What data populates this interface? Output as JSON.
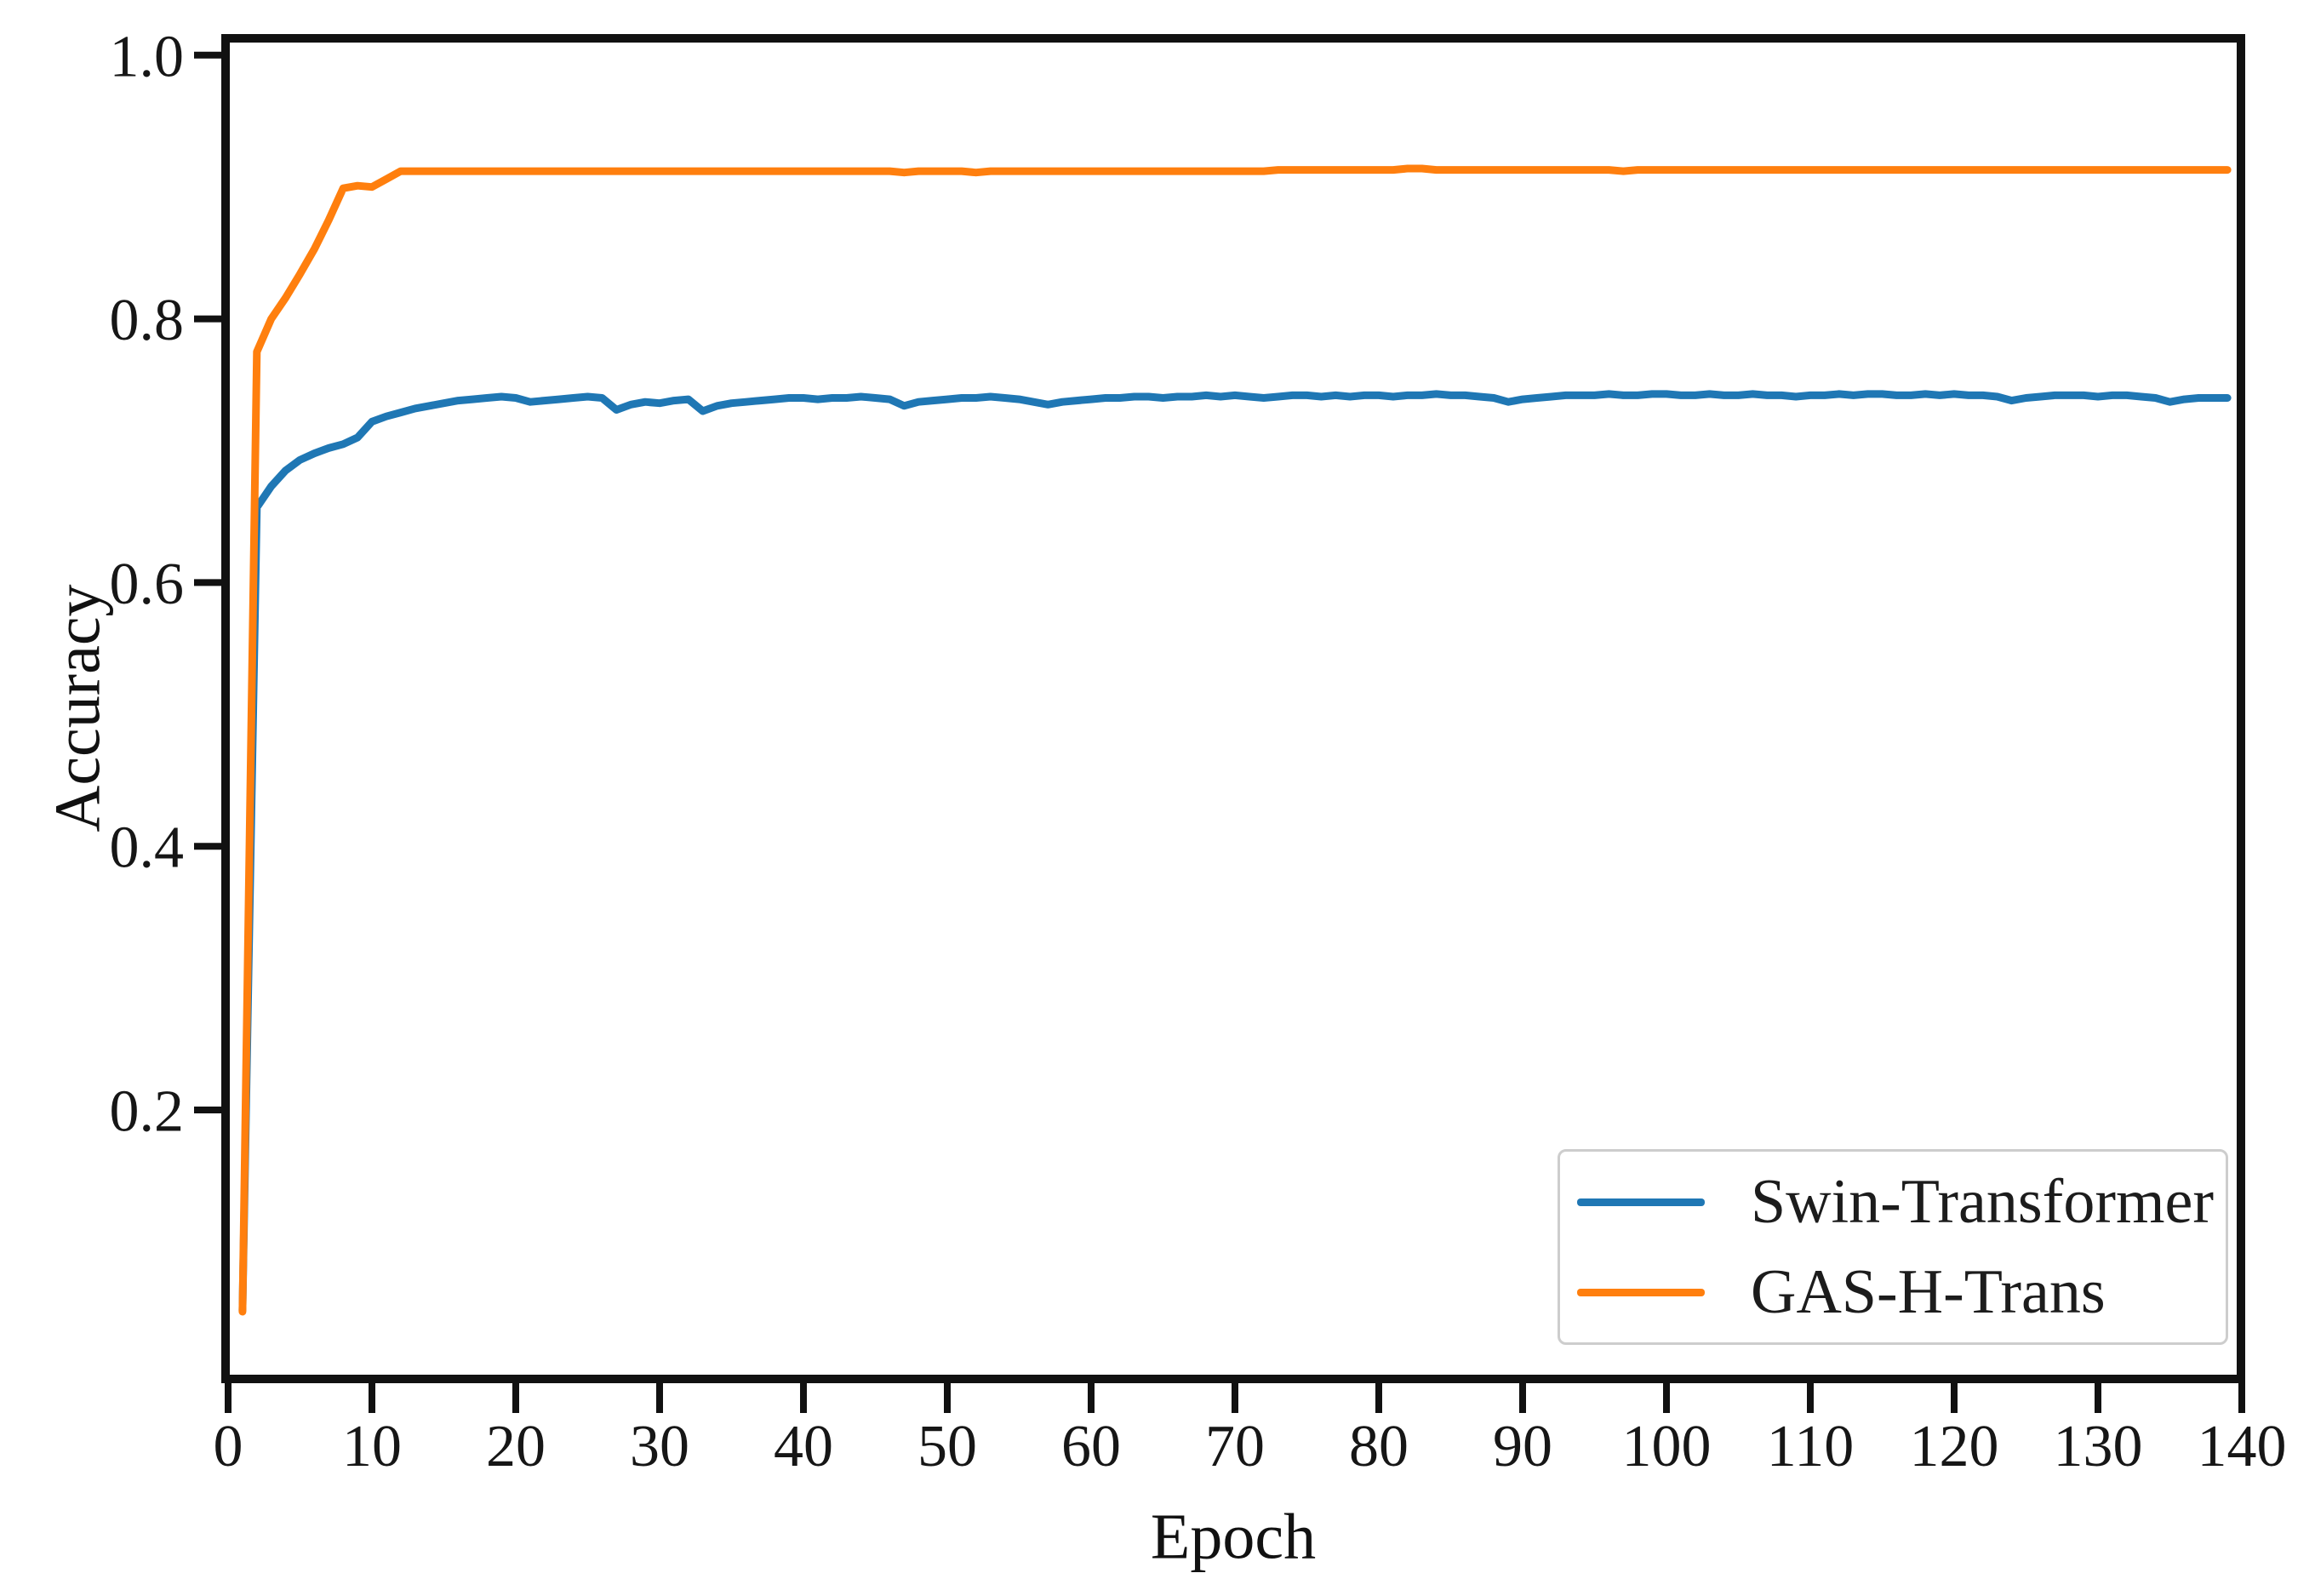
{
  "chart_data": {
    "type": "line",
    "title": "",
    "xlabel": "Epoch",
    "ylabel": "Accuracy",
    "xlim": [
      0,
      140
    ],
    "ylim": [
      0,
      1.01
    ],
    "grid": false,
    "legend_position": "lower right",
    "x_ticks": [
      0,
      10,
      20,
      30,
      40,
      50,
      60,
      70,
      80,
      90,
      100,
      110,
      120,
      130,
      140
    ],
    "x_tick_labels": [
      "0",
      "10",
      "20",
      "30",
      "40",
      "50",
      "60",
      "70",
      "80",
      "90",
      "100",
      "110",
      "120",
      "130",
      "140"
    ],
    "y_ticks": [
      0.2,
      0.4,
      0.6,
      0.8,
      1.0
    ],
    "y_tick_labels": [
      "0.2",
      "0.4",
      "0.6",
      "0.8",
      "1.0"
    ],
    "x_start": 1,
    "x_step": 1,
    "series": [
      {
        "name": "Swin-Transformer",
        "color": "#1f77b4",
        "values": [
          0.048,
          0.657,
          0.673,
          0.685,
          0.693,
          0.698,
          0.702,
          0.705,
          0.71,
          0.722,
          0.726,
          0.729,
          0.732,
          0.734,
          0.736,
          0.738,
          0.739,
          0.74,
          0.741,
          0.74,
          0.737,
          0.738,
          0.739,
          0.74,
          0.741,
          0.74,
          0.731,
          0.735,
          0.737,
          0.736,
          0.738,
          0.739,
          0.73,
          0.734,
          0.736,
          0.737,
          0.738,
          0.739,
          0.74,
          0.74,
          0.739,
          0.74,
          0.74,
          0.741,
          0.74,
          0.739,
          0.734,
          0.737,
          0.738,
          0.739,
          0.74,
          0.74,
          0.741,
          0.74,
          0.739,
          0.737,
          0.735,
          0.737,
          0.738,
          0.739,
          0.74,
          0.74,
          0.741,
          0.741,
          0.74,
          0.741,
          0.741,
          0.742,
          0.741,
          0.742,
          0.741,
          0.74,
          0.741,
          0.742,
          0.742,
          0.741,
          0.742,
          0.741,
          0.742,
          0.742,
          0.741,
          0.742,
          0.742,
          0.743,
          0.742,
          0.742,
          0.741,
          0.74,
          0.737,
          0.739,
          0.74,
          0.741,
          0.742,
          0.742,
          0.742,
          0.743,
          0.742,
          0.742,
          0.743,
          0.743,
          0.742,
          0.742,
          0.743,
          0.742,
          0.742,
          0.743,
          0.742,
          0.742,
          0.741,
          0.742,
          0.742,
          0.743,
          0.742,
          0.743,
          0.743,
          0.742,
          0.742,
          0.743,
          0.742,
          0.743,
          0.742,
          0.742,
          0.741,
          0.738,
          0.74,
          0.741,
          0.742,
          0.742,
          0.742,
          0.741,
          0.742,
          0.742,
          0.741,
          0.74,
          0.737,
          0.739,
          0.74,
          0.74,
          0.74
        ]
      },
      {
        "name": "GAS-H-Trans",
        "color": "#ff7f0e",
        "values": [
          0.047,
          0.775,
          0.8,
          0.816,
          0.834,
          0.853,
          0.875,
          0.899,
          0.901,
          0.9,
          0.906,
          0.912,
          0.912,
          0.912,
          0.912,
          0.912,
          0.912,
          0.912,
          0.912,
          0.912,
          0.912,
          0.912,
          0.912,
          0.912,
          0.912,
          0.912,
          0.912,
          0.912,
          0.912,
          0.912,
          0.912,
          0.912,
          0.912,
          0.912,
          0.912,
          0.912,
          0.912,
          0.912,
          0.912,
          0.912,
          0.912,
          0.912,
          0.912,
          0.912,
          0.912,
          0.912,
          0.911,
          0.912,
          0.912,
          0.912,
          0.912,
          0.911,
          0.912,
          0.912,
          0.912,
          0.912,
          0.912,
          0.912,
          0.912,
          0.912,
          0.912,
          0.912,
          0.912,
          0.912,
          0.912,
          0.912,
          0.912,
          0.912,
          0.912,
          0.912,
          0.912,
          0.912,
          0.913,
          0.913,
          0.913,
          0.913,
          0.913,
          0.913,
          0.913,
          0.913,
          0.913,
          0.914,
          0.914,
          0.913,
          0.913,
          0.913,
          0.913,
          0.913,
          0.913,
          0.913,
          0.913,
          0.913,
          0.913,
          0.913,
          0.913,
          0.913,
          0.912,
          0.913,
          0.913,
          0.913,
          0.913,
          0.913,
          0.913,
          0.913,
          0.913,
          0.913,
          0.913,
          0.913,
          0.913,
          0.913,
          0.913,
          0.913,
          0.913,
          0.913,
          0.913,
          0.913,
          0.913,
          0.913,
          0.913,
          0.913,
          0.913,
          0.913,
          0.913,
          0.913,
          0.913,
          0.913,
          0.913,
          0.913,
          0.913,
          0.913,
          0.913,
          0.913,
          0.913,
          0.913,
          0.913,
          0.913,
          0.913,
          0.913,
          0.913
        ]
      }
    ]
  }
}
